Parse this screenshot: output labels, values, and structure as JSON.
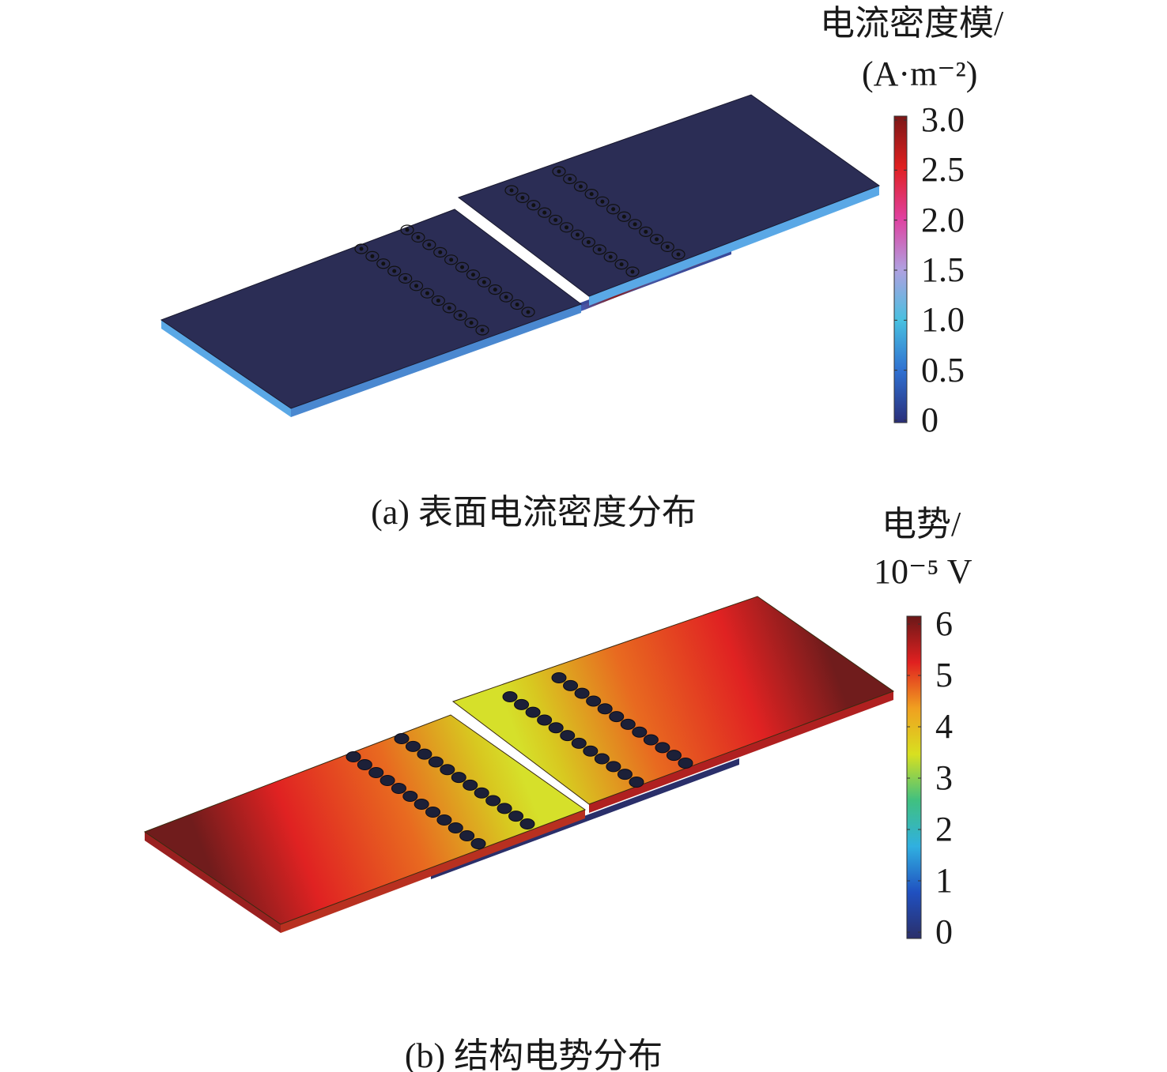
{
  "panels": [
    {
      "caption": "(a) 表面电流密度分布",
      "colorbar": {
        "title_line1": "电流密度模/",
        "title_line2": "(A·m⁻²)",
        "ticks": [
          "3.0",
          "2.5",
          "2.0",
          "1.5",
          "1.0",
          "0.5",
          "0"
        ],
        "range": [
          0,
          3.0
        ],
        "colormap": [
          "#2a2f7a",
          "#2f6fd0",
          "#48c0e0",
          "#b0a0e0",
          "#e040a0",
          "#e02020",
          "#7a1818"
        ]
      },
      "surface_color": "#2b2d55",
      "edge_color": "#5aa8e6"
    },
    {
      "caption": "(b) 结构电势分布",
      "colorbar": {
        "title_line1": "电势/",
        "title_line2": "10⁻⁵ V",
        "ticks": [
          "6",
          "5",
          "4",
          "3",
          "2",
          "1",
          "0"
        ],
        "range": [
          0,
          6
        ],
        "colormap": [
          "#2a2f6a",
          "#2050c0",
          "#30b0e0",
          "#40c080",
          "#d8e020",
          "#f0a020",
          "#e02020",
          "#6a1818"
        ]
      },
      "gradient": [
        "#701c1c",
        "#e02222",
        "#e86a20",
        "#d8c820",
        "#d6e02a"
      ]
    }
  ],
  "holes_per_row": 12
}
